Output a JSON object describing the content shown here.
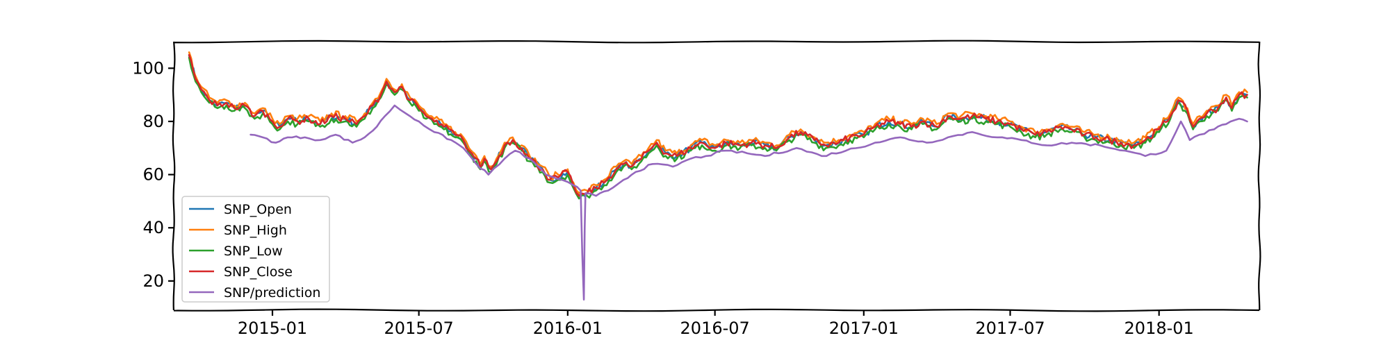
{
  "chart_data": {
    "type": "line",
    "title": "",
    "xlabel": "",
    "ylabel": "",
    "xlim": [
      "2014-09-01",
      "2018-05-05"
    ],
    "ylim": [
      9,
      110
    ],
    "grid": false,
    "legend_position": "lower-left",
    "x_ticks": [
      {
        "date": "2015-01-01",
        "label": "2015-01"
      },
      {
        "date": "2015-07-01",
        "label": "2015-07"
      },
      {
        "date": "2016-01-01",
        "label": "2016-01"
      },
      {
        "date": "2016-07-01",
        "label": "2016-07"
      },
      {
        "date": "2017-01-01",
        "label": "2017-01"
      },
      {
        "date": "2017-07-01",
        "label": "2017-07"
      },
      {
        "date": "2018-01-01",
        "label": "2018-01"
      }
    ],
    "y_ticks": [
      20,
      40,
      60,
      80,
      100
    ],
    "price_path": [
      [
        "2014-09-20",
        105
      ],
      [
        "2014-09-28",
        96
      ],
      [
        "2014-10-05",
        92
      ],
      [
        "2014-10-15",
        88
      ],
      [
        "2014-10-25",
        86
      ],
      [
        "2014-11-05",
        87
      ],
      [
        "2014-11-15",
        85
      ],
      [
        "2014-11-28",
        86
      ],
      [
        "2014-12-10",
        82
      ],
      [
        "2014-12-20",
        84
      ],
      [
        "2015-01-01",
        80
      ],
      [
        "2015-01-10",
        78
      ],
      [
        "2015-01-20",
        81
      ],
      [
        "2015-02-01",
        80
      ],
      [
        "2015-02-15",
        81
      ],
      [
        "2015-03-01",
        79
      ],
      [
        "2015-03-15",
        82
      ],
      [
        "2015-04-01",
        81
      ],
      [
        "2015-04-15",
        79
      ],
      [
        "2015-04-25",
        82
      ],
      [
        "2015-05-05",
        86
      ],
      [
        "2015-05-15",
        90
      ],
      [
        "2015-05-22",
        95
      ],
      [
        "2015-06-01",
        91
      ],
      [
        "2015-06-10",
        93
      ],
      [
        "2015-06-20",
        88
      ],
      [
        "2015-07-01",
        85
      ],
      [
        "2015-07-10",
        82
      ],
      [
        "2015-07-20",
        80
      ],
      [
        "2015-08-01",
        78
      ],
      [
        "2015-08-15",
        75
      ],
      [
        "2015-08-25",
        73
      ],
      [
        "2015-09-01",
        69
      ],
      [
        "2015-09-10",
        66
      ],
      [
        "2015-09-15",
        63
      ],
      [
        "2015-09-20",
        66
      ],
      [
        "2015-09-28",
        62
      ],
      [
        "2015-10-05",
        65
      ],
      [
        "2015-10-15",
        71
      ],
      [
        "2015-10-25",
        73
      ],
      [
        "2015-11-05",
        70
      ],
      [
        "2015-11-15",
        66
      ],
      [
        "2015-12-01",
        62
      ],
      [
        "2015-12-10",
        58
      ],
      [
        "2015-12-20",
        59
      ],
      [
        "2016-01-01",
        61
      ],
      [
        "2016-01-08",
        56
      ],
      [
        "2016-01-15",
        52
      ],
      [
        "2016-01-25",
        53
      ],
      [
        "2016-02-05",
        55
      ],
      [
        "2016-02-15",
        57
      ],
      [
        "2016-03-01",
        62
      ],
      [
        "2016-03-10",
        64
      ],
      [
        "2016-03-20",
        63
      ],
      [
        "2016-04-01",
        66
      ],
      [
        "2016-04-10",
        69
      ],
      [
        "2016-04-20",
        72
      ],
      [
        "2016-05-01",
        68
      ],
      [
        "2016-05-15",
        67
      ],
      [
        "2016-06-01",
        70
      ],
      [
        "2016-06-15",
        72
      ],
      [
        "2016-07-01",
        70
      ],
      [
        "2016-07-15",
        72
      ],
      [
        "2016-08-01",
        71
      ],
      [
        "2016-08-15",
        72
      ],
      [
        "2016-09-01",
        71
      ],
      [
        "2016-09-15",
        70
      ],
      [
        "2016-10-01",
        74
      ],
      [
        "2016-10-15",
        76
      ],
      [
        "2016-11-01",
        73
      ],
      [
        "2016-11-15",
        71
      ],
      [
        "2016-12-01",
        72
      ],
      [
        "2016-12-15",
        74
      ],
      [
        "2017-01-01",
        75
      ],
      [
        "2017-01-15",
        78
      ],
      [
        "2017-02-01",
        80
      ],
      [
        "2017-02-15",
        79
      ],
      [
        "2017-03-01",
        78
      ],
      [
        "2017-03-15",
        80
      ],
      [
        "2017-04-01",
        78
      ],
      [
        "2017-04-15",
        82
      ],
      [
        "2017-05-01",
        81
      ],
      [
        "2017-05-15",
        82
      ],
      [
        "2017-06-01",
        81
      ],
      [
        "2017-06-15",
        80
      ],
      [
        "2017-07-01",
        79
      ],
      [
        "2017-07-15",
        77
      ],
      [
        "2017-08-01",
        75
      ],
      [
        "2017-08-15",
        76
      ],
      [
        "2017-09-01",
        78
      ],
      [
        "2017-09-15",
        77
      ],
      [
        "2017-10-01",
        75
      ],
      [
        "2017-10-15",
        74
      ],
      [
        "2017-11-01",
        73
      ],
      [
        "2017-11-15",
        72
      ],
      [
        "2017-12-01",
        71
      ],
      [
        "2017-12-15",
        73
      ],
      [
        "2018-01-01",
        77
      ],
      [
        "2018-01-15",
        82
      ],
      [
        "2018-01-25",
        88
      ],
      [
        "2018-02-05",
        84
      ],
      [
        "2018-02-12",
        78
      ],
      [
        "2018-02-20",
        81
      ],
      [
        "2018-03-01",
        83
      ],
      [
        "2018-03-15",
        85
      ],
      [
        "2018-03-25",
        89
      ],
      [
        "2018-04-01",
        85
      ],
      [
        "2018-04-10",
        90
      ],
      [
        "2018-04-20",
        90
      ]
    ],
    "prediction_path": [
      [
        "2014-12-05",
        75
      ],
      [
        "2014-12-20",
        74
      ],
      [
        "2015-01-05",
        72
      ],
      [
        "2015-01-20",
        74
      ],
      [
        "2015-02-10",
        74
      ],
      [
        "2015-03-01",
        73
      ],
      [
        "2015-03-20",
        75
      ],
      [
        "2015-04-10",
        72
      ],
      [
        "2015-04-25",
        74
      ],
      [
        "2015-05-10",
        78
      ],
      [
        "2015-05-20",
        82
      ],
      [
        "2015-06-01",
        86
      ],
      [
        "2015-06-15",
        83
      ],
      [
        "2015-07-01",
        80
      ],
      [
        "2015-07-20",
        76
      ],
      [
        "2015-08-10",
        73
      ],
      [
        "2015-08-25",
        70
      ],
      [
        "2015-09-10",
        64
      ],
      [
        "2015-09-25",
        60
      ],
      [
        "2015-10-15",
        66
      ],
      [
        "2015-10-28",
        69
      ],
      [
        "2015-11-15",
        66
      ],
      [
        "2015-12-05",
        60
      ],
      [
        "2015-12-25",
        58
      ],
      [
        "2016-01-08",
        56
      ],
      [
        "2016-01-17",
        54
      ],
      [
        "2016-01-19",
        30
      ],
      [
        "2016-01-21",
        13
      ],
      [
        "2016-01-22",
        40
      ],
      [
        "2016-01-23",
        53
      ],
      [
        "2016-02-05",
        52
      ],
      [
        "2016-02-20",
        54
      ],
      [
        "2016-03-10",
        58
      ],
      [
        "2016-03-25",
        61
      ],
      [
        "2016-04-15",
        64
      ],
      [
        "2016-05-10",
        63
      ],
      [
        "2016-06-01",
        66
      ],
      [
        "2016-06-20",
        67
      ],
      [
        "2016-07-15",
        69
      ],
      [
        "2016-08-10",
        68
      ],
      [
        "2016-09-01",
        67
      ],
      [
        "2016-10-10",
        70
      ],
      [
        "2016-11-10",
        67
      ],
      [
        "2016-12-10",
        69
      ],
      [
        "2017-01-15",
        72
      ],
      [
        "2017-02-15",
        74
      ],
      [
        "2017-03-20",
        72
      ],
      [
        "2017-04-15",
        74
      ],
      [
        "2017-05-15",
        76
      ],
      [
        "2017-06-15",
        74
      ],
      [
        "2017-07-15",
        73
      ],
      [
        "2017-08-15",
        71
      ],
      [
        "2017-09-15",
        72
      ],
      [
        "2017-10-20",
        71
      ],
      [
        "2017-11-20",
        69
      ],
      [
        "2017-12-15",
        67
      ],
      [
        "2018-01-10",
        69
      ],
      [
        "2018-01-28",
        80
      ],
      [
        "2018-02-08",
        73
      ],
      [
        "2018-02-20",
        75
      ],
      [
        "2018-03-10",
        77
      ],
      [
        "2018-03-25",
        79
      ],
      [
        "2018-04-10",
        81
      ],
      [
        "2018-04-20",
        80
      ]
    ],
    "series": [
      {
        "name": "SNP_Open",
        "color": "#1f77b4",
        "source": "price_path",
        "offset": 0
      },
      {
        "name": "SNP_High",
        "color": "#ff7f0e",
        "source": "price_path",
        "offset": 1
      },
      {
        "name": "SNP_Low",
        "color": "#2ca02c",
        "source": "price_path",
        "offset": -1
      },
      {
        "name": "SNP_Close",
        "color": "#d62728",
        "source": "price_path",
        "offset": 0
      },
      {
        "name": "SNP/prediction",
        "color": "#9467bd",
        "source": "prediction_path",
        "offset": 0
      }
    ]
  }
}
